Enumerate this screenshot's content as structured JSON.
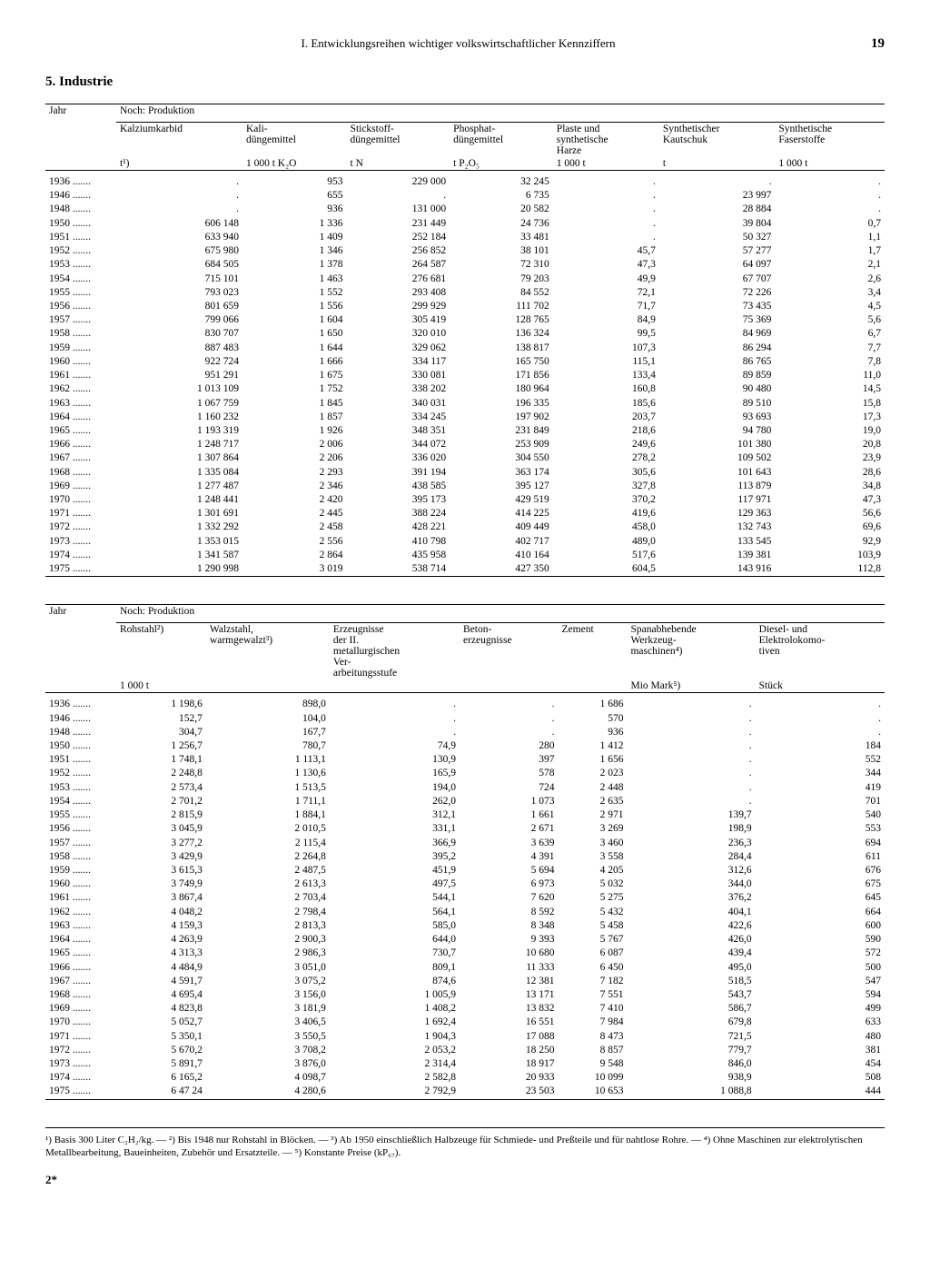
{
  "header": {
    "chapter": "I. Entwicklungsreihen wichtiger volkswirtschaftlicher Kennziffern",
    "page": "19"
  },
  "section": "5. Industrie",
  "table1": {
    "yearLabel": "Jahr",
    "groupLabel": "Noch: Produktion",
    "cols": [
      {
        "h": "Kalziumkarbid",
        "u": "t¹)"
      },
      {
        "h": "Kali-\ndüngemittel",
        "u": "1 000 t K₂O"
      },
      {
        "h": "Stickstoff-\ndüngemittel",
        "u": "t N"
      },
      {
        "h": "Phosphat-\ndüngemittel",
        "u": "t P₂O₅"
      },
      {
        "h": "Plaste und\nsynthetische\nHarze",
        "u": "1 000 t"
      },
      {
        "h": "Synthetischer\nKautschuk",
        "u": "t"
      },
      {
        "h": "Synthetische\nFaserstoffe",
        "u": "1 000 t"
      }
    ],
    "rows": [
      [
        "1936",
        ".",
        "953",
        "229 000",
        "32 245",
        ".",
        ".",
        "."
      ],
      [
        "1946",
        ".",
        "655",
        ".",
        "6 735",
        ".",
        "23 997",
        "."
      ],
      [
        "1948",
        ".",
        "936",
        "131 000",
        "20 582",
        ".",
        "28 884",
        "."
      ],
      [
        "1950",
        "606 148",
        "1 336",
        "231 449",
        "24 736",
        ".",
        "39 804",
        "0,7"
      ],
      [
        "1951",
        "633 940",
        "1 409",
        "252 184",
        "33 481",
        ".",
        "50 327",
        "1,1"
      ],
      [
        "1952",
        "675 980",
        "1 346",
        "256 852",
        "38 101",
        "45,7",
        "57 277",
        "1,7"
      ],
      [
        "1953",
        "684 505",
        "1 378",
        "264 587",
        "72 310",
        "47,3",
        "64 097",
        "2,1"
      ],
      [
        "1954",
        "715 101",
        "1 463",
        "276 681",
        "79 203",
        "49,9",
        "67 707",
        "2,6"
      ],
      [
        "1955",
        "793 023",
        "1 552",
        "293 408",
        "84 552",
        "72,1",
        "72 226",
        "3,4"
      ],
      [
        "1956",
        "801 659",
        "1 556",
        "299 929",
        "111 702",
        "71,7",
        "73 435",
        "4,5"
      ],
      [
        "1957",
        "799 066",
        "1 604",
        "305 419",
        "128 765",
        "84,9",
        "75 369",
        "5,6"
      ],
      [
        "1958",
        "830 707",
        "1 650",
        "320 010",
        "136 324",
        "99,5",
        "84 969",
        "6,7"
      ],
      [
        "1959",
        "887 483",
        "1 644",
        "329 062",
        "138 817",
        "107,3",
        "86 294",
        "7,7"
      ],
      [
        "1960",
        "922 724",
        "1 666",
        "334 117",
        "165 750",
        "115,1",
        "86 765",
        "7,8"
      ],
      [
        "1961",
        "951 291",
        "1 675",
        "330 081",
        "171 856",
        "133,4",
        "89 859",
        "11,0"
      ],
      [
        "1962",
        "1 013 109",
        "1 752",
        "338 202",
        "180 964",
        "160,8",
        "90 480",
        "14,5"
      ],
      [
        "1963",
        "1 067 759",
        "1 845",
        "340 031",
        "196 335",
        "185,6",
        "89 510",
        "15,8"
      ],
      [
        "1964",
        "1 160 232",
        "1 857",
        "334 245",
        "197 902",
        "203,7",
        "93 693",
        "17,3"
      ],
      [
        "1965",
        "1 193 319",
        "1 926",
        "348 351",
        "231 849",
        "218,6",
        "94 780",
        "19,0"
      ],
      [
        "1966",
        "1 248 717",
        "2 006",
        "344 072",
        "253 909",
        "249,6",
        "101 380",
        "20,8"
      ],
      [
        "1967",
        "1 307 864",
        "2 206",
        "336 020",
        "304 550",
        "278,2",
        "109 502",
        "23,9"
      ],
      [
        "1968",
        "1 335 084",
        "2 293",
        "391 194",
        "363 174",
        "305,6",
        "101 643",
        "28,6"
      ],
      [
        "1969",
        "1 277 487",
        "2 346",
        "438 585",
        "395 127",
        "327,8",
        "113 879",
        "34,8"
      ],
      [
        "1970",
        "1 248 441",
        "2 420",
        "395 173",
        "429 519",
        "370,2",
        "117 971",
        "47,3"
      ],
      [
        "1971",
        "1 301 691",
        "2 445",
        "388 224",
        "414 225",
        "419,6",
        "129 363",
        "56,6"
      ],
      [
        "1972",
        "1 332 292",
        "2 458",
        "428 221",
        "409 449",
        "458,0",
        "132 743",
        "69,6"
      ],
      [
        "1973",
        "1 353 015",
        "2 556",
        "410 798",
        "402 717",
        "489,0",
        "133 545",
        "92,9"
      ],
      [
        "1974",
        "1 341 587",
        "2 864",
        "435 958",
        "410 164",
        "517,6",
        "139 381",
        "103,9"
      ],
      [
        "1975",
        "1 290 998",
        "3 019",
        "538 714",
        "427 350",
        "604,5",
        "143 916",
        "112,8"
      ]
    ]
  },
  "table2": {
    "yearLabel": "Jahr",
    "groupLabel": "Noch: Produktion",
    "cols": [
      {
        "h": "Rohstahl²)",
        "u": "1 000 t"
      },
      {
        "h": "Walzstahl,\nwarmgewalzt³)",
        "u": ""
      },
      {
        "h": "Erzeugnisse\nder II.\nmetallurgischen\nVer-\narbeitungsstufe",
        "u": ""
      },
      {
        "h": "Beton-\nerzeugnisse",
        "u": ""
      },
      {
        "h": "Zement",
        "u": ""
      },
      {
        "h": "Spanabhebende\nWerkzeug-\nmaschinen⁴)",
        "u": "Mio Mark⁵)"
      },
      {
        "h": "Diesel- und\nElektrolokomo-\ntiven",
        "u": "Stück"
      }
    ],
    "rows": [
      [
        "1936",
        "1 198,6",
        "898,0",
        ".",
        ".",
        "1 686",
        ".",
        "."
      ],
      [
        "1946",
        "152,7",
        "104,0",
        ".",
        ".",
        "570",
        ".",
        "."
      ],
      [
        "1948",
        "304,7",
        "167,7",
        ".",
        ".",
        "936",
        ".",
        "."
      ],
      [
        "1950",
        "1 256,7",
        "780,7",
        "74,9",
        "280",
        "1 412",
        ".",
        "184"
      ],
      [
        "1951",
        "1 748,1",
        "1 113,1",
        "130,9",
        "397",
        "1 656",
        ".",
        "552"
      ],
      [
        "1952",
        "2 248,8",
        "1 130,6",
        "165,9",
        "578",
        "2 023",
        ".",
        "344"
      ],
      [
        "1953",
        "2 573,4",
        "1 513,5",
        "194,0",
        "724",
        "2 448",
        ".",
        "419"
      ],
      [
        "1954",
        "2 701,2",
        "1 711,1",
        "262,0",
        "1 073",
        "2 635",
        ".",
        "701"
      ],
      [
        "1955",
        "2 815,9",
        "1 884,1",
        "312,1",
        "1 661",
        "2 971",
        "139,7",
        "540"
      ],
      [
        "1956",
        "3 045,9",
        "2 010,5",
        "331,1",
        "2 671",
        "3 269",
        "198,9",
        "553"
      ],
      [
        "1957",
        "3 277,2",
        "2 115,4",
        "366,9",
        "3 639",
        "3 460",
        "236,3",
        "694"
      ],
      [
        "1958",
        "3 429,9",
        "2 264,8",
        "395,2",
        "4 391",
        "3 558",
        "284,4",
        "611"
      ],
      [
        "1959",
        "3 615,3",
        "2 487,5",
        "451,9",
        "5 694",
        "4 205",
        "312,6",
        "676"
      ],
      [
        "1960",
        "3 749,9",
        "2 613,3",
        "497,5",
        "6 973",
        "5 032",
        "344,0",
        "675"
      ],
      [
        "1961",
        "3 867,4",
        "2 703,4",
        "544,1",
        "7 620",
        "5 275",
        "376,2",
        "645"
      ],
      [
        "1962",
        "4 048,2",
        "2 798,4",
        "564,1",
        "8 592",
        "5 432",
        "404,1",
        "664"
      ],
      [
        "1963",
        "4 159,3",
        "2 813,3",
        "585,0",
        "8 348",
        "5 458",
        "422,6",
        "600"
      ],
      [
        "1964",
        "4 263,9",
        "2 900,3",
        "644,0",
        "9 393",
        "5 767",
        "426,0",
        "590"
      ],
      [
        "1965",
        "4 313,3",
        "2 986,3",
        "730,7",
        "10 680",
        "6 087",
        "439,4",
        "572"
      ],
      [
        "1966",
        "4 484,9",
        "3 051,0",
        "809,1",
        "11 333",
        "6 450",
        "495,0",
        "500"
      ],
      [
        "1967",
        "4 591,7",
        "3 075,2",
        "874,6",
        "12 381",
        "7 182",
        "518,5",
        "547"
      ],
      [
        "1968",
        "4 695,4",
        "3 156,0",
        "1 005,9",
        "13 171",
        "7 551",
        "543,7",
        "594"
      ],
      [
        "1969",
        "4 823,8",
        "3 181,9",
        "1 408,2",
        "13 832",
        "7 410",
        "586,7",
        "499"
      ],
      [
        "1970",
        "5 052,7",
        "3 406,5",
        "1 692,4",
        "16 551",
        "7 984",
        "679,8",
        "633"
      ],
      [
        "1971",
        "5 350,1",
        "3 550,5",
        "1 904,3",
        "17 088",
        "8 473",
        "721,5",
        "480"
      ],
      [
        "1972",
        "5 670,2",
        "3 708,2",
        "2 053,2",
        "18 250",
        "8 857",
        "779,7",
        "381"
      ],
      [
        "1973",
        "5 891,7",
        "3 876,0",
        "2 314,4",
        "18 917",
        "9 548",
        "846,0",
        "454"
      ],
      [
        "1974",
        "6 165,2",
        "4 098,7",
        "2 582,8",
        "20 933",
        "10 099",
        "938,9",
        "508"
      ],
      [
        "1975",
        "6 47 24",
        "4 280,6",
        "2 792,9",
        "23 503",
        "10 653",
        "1 088,8",
        "444"
      ]
    ]
  },
  "footnotes": "¹) Basis 300 Liter C₂H₂/kg. — ²) Bis 1948 nur Rohstahl in Blöcken. — ³) Ab 1950 einschließlich Halbzeuge für Schmiede- und Preßteile und für nahtlose Rohre. — ⁴) Ohne Maschinen zur elektrolytischen Metallbearbeitung, Baueinheiten, Zubehör und Ersatzteile. — ⁵) Konstante Preise (kP₆₇).",
  "sig": "2*"
}
